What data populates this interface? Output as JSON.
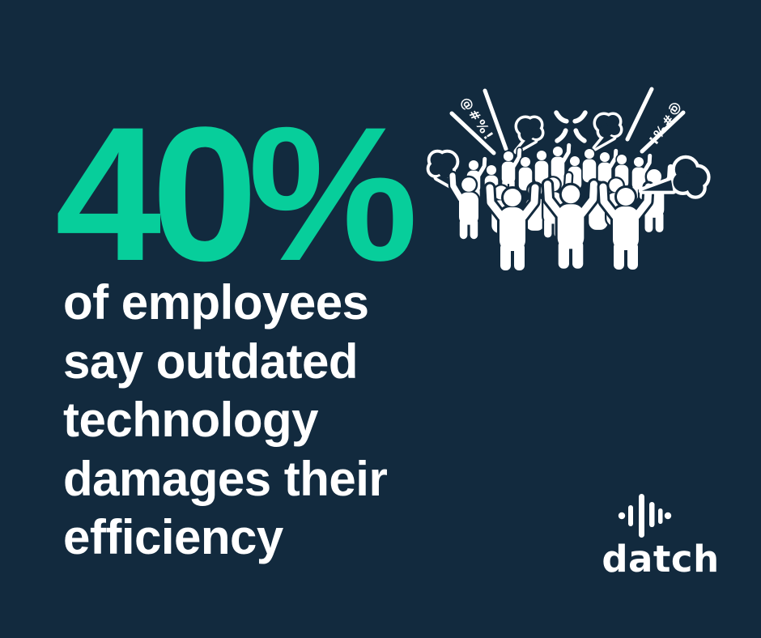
{
  "colors": {
    "background": "#122A3E",
    "accent_green": "#07CE9B",
    "text_white": "#FFFFFF"
  },
  "stat": {
    "value": "40%"
  },
  "headline": {
    "lines": [
      "of employees",
      "say outdated",
      "technology",
      "damages their",
      "efficiency"
    ]
  },
  "illustration": {
    "name": "angry-crowd-illustration",
    "grawlix_left": "@#%!",
    "grawlix_right": "@#%!",
    "icons": [
      "steam-puff-icon",
      "anger-mark-icon",
      "person-arms-raised-icon"
    ]
  },
  "brand": {
    "name": "datch",
    "logo_icon": "waveform-icon"
  }
}
